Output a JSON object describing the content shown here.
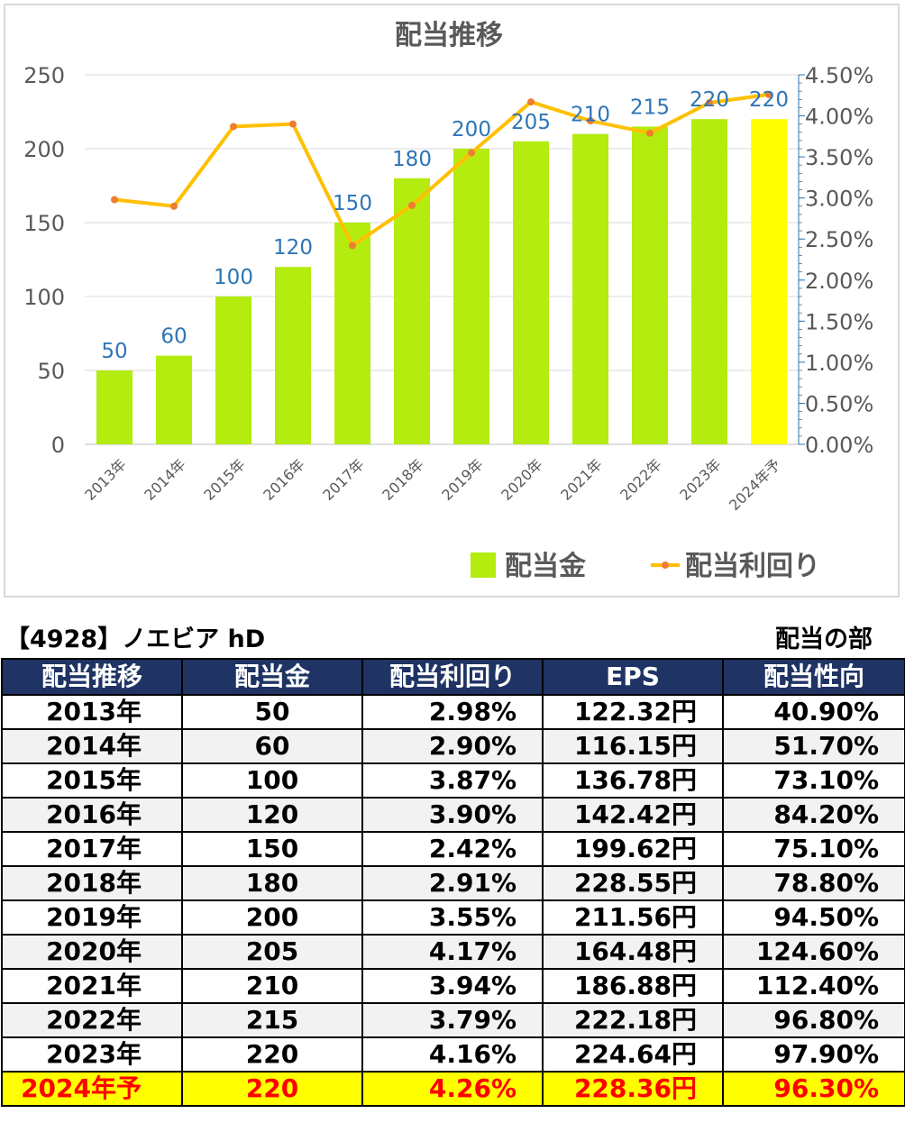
{
  "chart_data": {
    "type": "bar+line",
    "title": "配当推移",
    "categories": [
      "2013年",
      "2014年",
      "2015年",
      "2016年",
      "2017年",
      "2018年",
      "2019年",
      "2020年",
      "2021年",
      "2022年",
      "2023年",
      "2024年予"
    ],
    "series": [
      {
        "name": "配当金",
        "type": "bar",
        "axis": "left",
        "values": [
          50,
          60,
          100,
          120,
          150,
          180,
          200,
          205,
          210,
          215,
          220,
          220
        ],
        "data_labels": [
          "50",
          "60",
          "100",
          "120",
          "150",
          "180",
          "200",
          "205",
          "210",
          "215",
          "220",
          "220"
        ],
        "color": "#b3ec0e",
        "highlight_color": "#ffff00",
        "highlight_index": 11
      },
      {
        "name": "配当利回り",
        "type": "line",
        "axis": "right",
        "values": [
          2.98,
          2.9,
          3.87,
          3.9,
          2.42,
          2.91,
          3.55,
          4.17,
          3.94,
          3.79,
          4.16,
          4.26
        ],
        "color": "#ffc000",
        "marker_color": "#ed7d31"
      }
    ],
    "y_left": {
      "min": 0,
      "max": 250,
      "ticks": [
        "0",
        "50",
        "100",
        "150",
        "200",
        "250"
      ]
    },
    "y_right": {
      "min": 0,
      "max": 4.5,
      "ticks": [
        "0.00%",
        "0.50%",
        "1.00%",
        "1.50%",
        "2.00%",
        "2.50%",
        "3.00%",
        "3.50%",
        "4.00%",
        "4.50%"
      ]
    },
    "grid": "horizontal",
    "legend": "bottom-right",
    "label_color": "#2e75b6",
    "axis_text_color": "#595959"
  },
  "table": {
    "title": "【4928】ノエビア hD",
    "section": "配当の部",
    "columns": [
      "配当推移",
      "配当金",
      "配当利回り",
      "EPS",
      "配当性向"
    ],
    "rows": [
      [
        "2013年",
        "50",
        "2.98%",
        "122.32円",
        "40.90%"
      ],
      [
        "2014年",
        "60",
        "2.90%",
        "116.15円",
        "51.70%"
      ],
      [
        "2015年",
        "100",
        "3.87%",
        "136.78円",
        "73.10%"
      ],
      [
        "2016年",
        "120",
        "3.90%",
        "142.42円",
        "84.20%"
      ],
      [
        "2017年",
        "150",
        "2.42%",
        "199.62円",
        "75.10%"
      ],
      [
        "2018年",
        "180",
        "2.91%",
        "228.55円",
        "78.80%"
      ],
      [
        "2019年",
        "200",
        "3.55%",
        "211.56円",
        "94.50%"
      ],
      [
        "2020年",
        "205",
        "4.17%",
        "164.48円",
        "124.60%"
      ],
      [
        "2021年",
        "210",
        "3.94%",
        "186.88円",
        "112.40%"
      ],
      [
        "2022年",
        "215",
        "3.79%",
        "222.18円",
        "96.80%"
      ],
      [
        "2023年",
        "220",
        "4.16%",
        "224.64円",
        "97.90%"
      ],
      [
        "2024年予",
        "220",
        "4.26%",
        "228.36円",
        "96.30%"
      ]
    ],
    "header_color": "#1f3464",
    "highlight_row_bg": "#ffff00",
    "highlight_row_text": "#ff0000"
  }
}
